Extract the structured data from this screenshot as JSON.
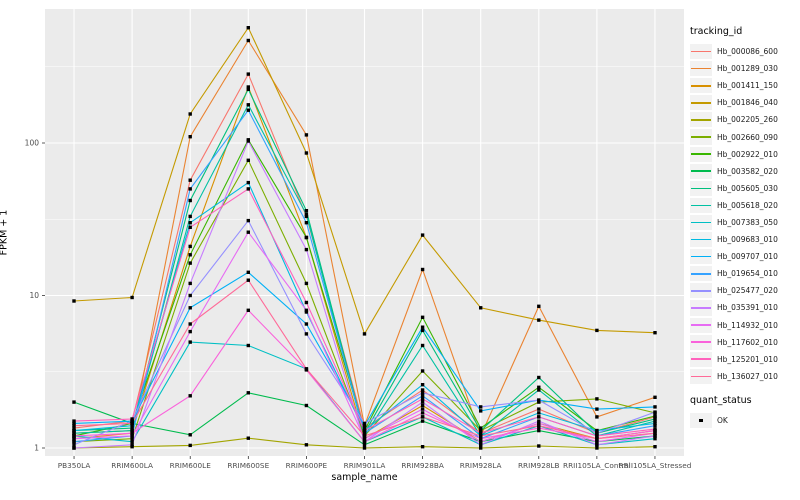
{
  "chart_data": {
    "type": "line",
    "title": "",
    "xlabel": "sample_name",
    "ylabel": "FPKM + 1",
    "y_scale": "log10",
    "ylim": [
      0.89,
      760
    ],
    "yticks": [
      1,
      10,
      100
    ],
    "ytick_labels": [
      "1",
      "10",
      "100"
    ],
    "y_minor_gridlines": [
      3.162,
      31.62,
      316.2
    ],
    "grid": "major-and-minor, white on grey panel",
    "legend_position": "right",
    "panel_background": "#EBEBEB",
    "gridline_color": "#FFFFFF",
    "axis_text_color": "#4D4D4D",
    "point_marker": "small black square (quant_status = OK)",
    "categories": [
      "PB350LA",
      "RRIM600LA",
      "RRIM600LE",
      "RRIM600SE",
      "RRIM600PE",
      "RRIM901LA",
      "RRIM928BA",
      "RRIM928LA",
      "RRIM928LB",
      "RRII105LA_Control",
      "RRII105LA_Stressed"
    ],
    "series": [
      {
        "name": "Hb_000086_600",
        "color": "#F8766D",
        "values": [
          1.35,
          1.5,
          57,
          283,
          33,
          1.35,
          2.4,
          1.25,
          1.8,
          1.25,
          1.6
        ]
      },
      {
        "name": "Hb_001289_030",
        "color": "#EA8331",
        "values": [
          1.15,
          1.25,
          110,
          470,
          113,
          1.4,
          14.8,
          1.2,
          8.5,
          1.6,
          2.15
        ]
      },
      {
        "name": "Hb_001411_150",
        "color": "#D89000",
        "values": [
          1.25,
          1.3,
          21,
          233,
          24,
          1.15,
          1.9,
          1.1,
          1.45,
          1.15,
          1.3
        ]
      },
      {
        "name": "Hb_001846_040",
        "color": "#C49A00",
        "values": [
          9.2,
          9.7,
          155,
          570,
          86,
          5.6,
          24.9,
          8.3,
          6.9,
          5.9,
          5.7
        ]
      },
      {
        "name": "Hb_002205_260",
        "color": "#A3A500",
        "values": [
          1.0,
          1.02,
          1.04,
          1.16,
          1.05,
          1.0,
          1.02,
          1.0,
          1.03,
          1.0,
          1.02
        ]
      },
      {
        "name": "Hb_002660_090",
        "color": "#7CAE00",
        "values": [
          1.1,
          1.15,
          16.3,
          77,
          12,
          1.2,
          3.2,
          1.3,
          2.0,
          2.1,
          1.7
        ]
      },
      {
        "name": "Hb_002922_010",
        "color": "#39B600",
        "values": [
          1.2,
          1.45,
          18.5,
          105,
          24,
          1.3,
          7.2,
          1.35,
          2.5,
          1.3,
          1.62
        ]
      },
      {
        "name": "Hb_003582_020",
        "color": "#00BB4E",
        "values": [
          2.0,
          1.45,
          1.22,
          2.3,
          1.9,
          1.05,
          1.5,
          1.1,
          1.3,
          1.1,
          1.2
        ]
      },
      {
        "name": "Hb_005605_030",
        "color": "#00BF7D",
        "values": [
          1.3,
          1.35,
          42,
          225,
          36,
          1.25,
          5.9,
          1.3,
          2.9,
          1.25,
          1.55
        ]
      },
      {
        "name": "Hb_005618_020",
        "color": "#00C1A3",
        "values": [
          1.25,
          1.3,
          33,
          178,
          34,
          1.2,
          4.7,
          1.2,
          2.4,
          1.2,
          1.5
        ]
      },
      {
        "name": "Hb_007383_050",
        "color": "#00BFC4",
        "values": [
          1.2,
          1.1,
          4.95,
          4.7,
          3.3,
          1.1,
          1.6,
          1.05,
          1.4,
          1.05,
          1.15
        ]
      },
      {
        "name": "Hb_009683_010",
        "color": "#00BAE0",
        "values": [
          1.3,
          1.4,
          30,
          55,
          7.8,
          1.3,
          2.6,
          1.2,
          1.7,
          1.3,
          1.45
        ]
      },
      {
        "name": "Hb_009707_010",
        "color": "#00B0F6",
        "values": [
          1.45,
          1.5,
          8.3,
          14.2,
          6.5,
          1.4,
          6.2,
          1.75,
          2.06,
          1.8,
          1.86
        ]
      },
      {
        "name": "Hb_019654_010",
        "color": "#35A2FF",
        "values": [
          1.1,
          1.2,
          50,
          164,
          30,
          1.25,
          2.2,
          1.15,
          1.6,
          1.2,
          1.4
        ]
      },
      {
        "name": "Hb_025477_020",
        "color": "#9590FF",
        "values": [
          1.05,
          1.5,
          10,
          31,
          5.6,
          1.45,
          2.3,
          1.86,
          2.06,
          1.25,
          1.72
        ]
      },
      {
        "name": "Hb_035391_010",
        "color": "#C77CFF",
        "values": [
          1.0,
          1.05,
          12,
          103,
          20,
          1.1,
          2.0,
          1.05,
          1.5,
          1.05,
          1.2
        ]
      },
      {
        "name": "Hb_114932_010",
        "color": "#E76BF3",
        "values": [
          1.15,
          1.2,
          5.8,
          26,
          8.0,
          1.15,
          1.8,
          1.1,
          1.45,
          1.1,
          1.25
        ]
      },
      {
        "name": "Hb_117602_010",
        "color": "#FA62DB",
        "values": [
          1.2,
          1.25,
          2.2,
          8.0,
          3.25,
          1.1,
          1.7,
          1.15,
          1.35,
          1.15,
          1.3
        ]
      },
      {
        "name": "Hb_125201_010",
        "color": "#FF62BC",
        "values": [
          1.5,
          1.55,
          28,
          50,
          9.0,
          1.3,
          2.1,
          1.25,
          1.6,
          1.2,
          1.33
        ]
      },
      {
        "name": "Hb_136027_010",
        "color": "#FF6A98",
        "values": [
          1.4,
          1.45,
          6.5,
          12.6,
          3.3,
          1.2,
          1.6,
          1.2,
          1.4,
          1.15,
          1.25
        ]
      }
    ]
  },
  "legend": {
    "tracking_title": "tracking_id",
    "quant_title": "quant_status",
    "quant_items": [
      {
        "label": "OK",
        "marker": "black-square"
      }
    ]
  }
}
